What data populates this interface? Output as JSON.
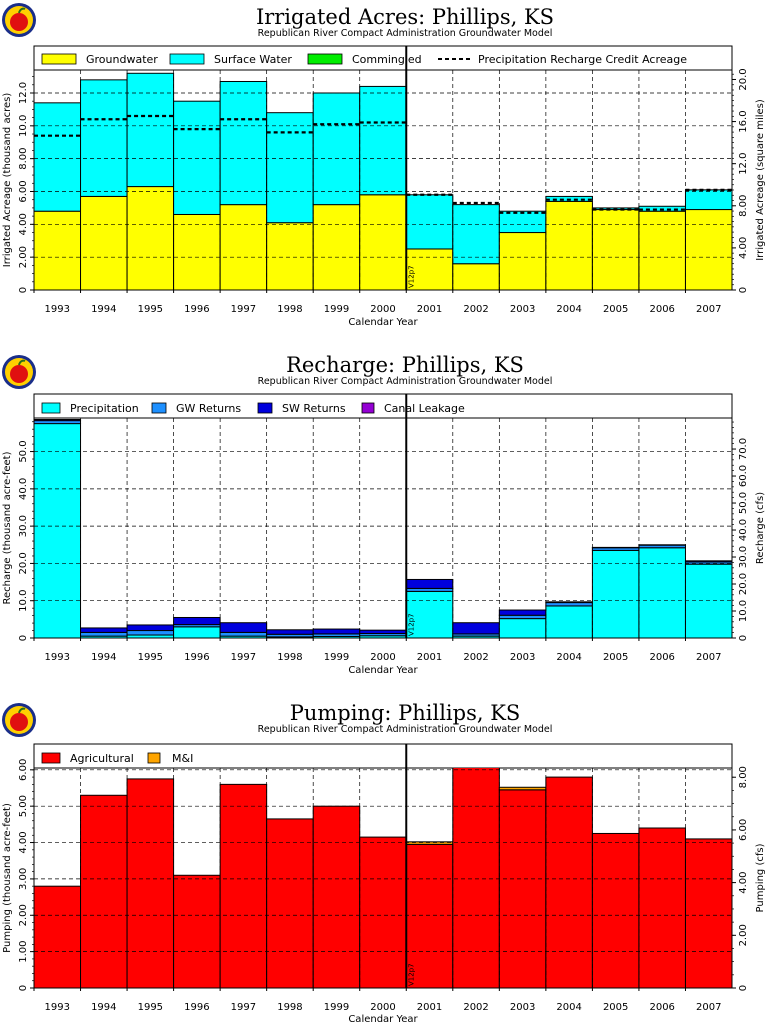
{
  "chart_data": [
    {
      "type": "bar",
      "stacked": true,
      "title": "Irrigated Acres: Phillips, KS",
      "subtitle": "Republican River Compact Administration Groundwater Model",
      "xlabel": "Calendar Year",
      "ylabel": "Irrigated Acreage (thousand acres)",
      "y2label": "Irrigated Acreage (square miles)",
      "categories": [
        "1993",
        "1994",
        "1995",
        "1996",
        "1997",
        "1998",
        "1999",
        "2000",
        "2001",
        "2002",
        "2003",
        "2004",
        "2005",
        "2006",
        "2007"
      ],
      "ylim": [
        0,
        13.4
      ],
      "yticks": [
        "0",
        "2.00",
        "4.00",
        "6.00",
        "8.00",
        "10.0",
        "12.0"
      ],
      "y2lim": [
        0,
        20.9
      ],
      "y2ticks": [
        "0",
        "4.00",
        "8.00",
        "12.0",
        "16.0",
        "20.0"
      ],
      "vline_label": "V12p7",
      "series": [
        {
          "name": "Groundwater",
          "color": "#ffff00",
          "values": [
            4.8,
            5.7,
            6.3,
            4.6,
            5.2,
            4.1,
            5.2,
            5.8,
            2.5,
            1.6,
            3.5,
            5.4,
            4.9,
            4.8,
            4.9
          ]
        },
        {
          "name": "Surface Water",
          "color": "#00ffff",
          "values": [
            6.6,
            7.1,
            6.9,
            6.9,
            7.5,
            6.7,
            6.8,
            6.6,
            3.3,
            3.6,
            1.3,
            0.3,
            0.1,
            0.3,
            1.2
          ]
        },
        {
          "name": "Commingled",
          "color": "#00ee00",
          "values": [
            0,
            0,
            0,
            0,
            0,
            0,
            0,
            0,
            0,
            0,
            0,
            0,
            0,
            0,
            0
          ]
        }
      ],
      "overlay": {
        "name": "Precipitation Recharge Credit Acreage",
        "style": "dashed",
        "values": [
          9.4,
          10.4,
          10.6,
          9.8,
          10.4,
          9.6,
          10.1,
          10.2,
          5.8,
          5.3,
          4.7,
          5.5,
          4.9,
          4.9,
          6.1
        ]
      }
    },
    {
      "type": "bar",
      "stacked": true,
      "title": "Recharge: Phillips, KS",
      "subtitle": "Republican River Compact Administration Groundwater Model",
      "xlabel": "Calendar Year",
      "ylabel": "Recharge (thousand acre-feet)",
      "y2label": "Recharge (cfs)",
      "categories": [
        "1993",
        "1994",
        "1995",
        "1996",
        "1997",
        "1998",
        "1999",
        "2000",
        "2001",
        "2002",
        "2003",
        "2004",
        "2005",
        "2006",
        "2007"
      ],
      "ylim": [
        0,
        59
      ],
      "yticks": [
        "0",
        "10.0",
        "20.0",
        "30.0",
        "40.0",
        "50.0"
      ],
      "y2lim": [
        0,
        81.5
      ],
      "y2ticks": [
        "0",
        "10.0",
        "20.0",
        "30.0",
        "40.0",
        "50.0",
        "60.0",
        "70.0"
      ],
      "vline_label": "V12p7",
      "series": [
        {
          "name": "Precipitation",
          "color": "#00ffff",
          "values": [
            57.5,
            0.5,
            0.8,
            3.0,
            0.5,
            0.3,
            0.4,
            0.6,
            12.5,
            0.5,
            5.2,
            8.6,
            23.5,
            24.2,
            19.8
          ]
        },
        {
          "name": "GW Returns",
          "color": "#1e90ff",
          "values": [
            0.8,
            1.0,
            1.2,
            0.6,
            1.0,
            0.7,
            0.7,
            0.6,
            0.8,
            0.6,
            0.9,
            0.9,
            0.7,
            0.7,
            0.6
          ]
        },
        {
          "name": "SW Returns",
          "color": "#0000dd",
          "values": [
            0.3,
            1.2,
            1.5,
            1.9,
            2.6,
            1.2,
            1.3,
            0.9,
            2.4,
            3.0,
            1.4,
            0.2,
            0.1,
            0.1,
            0.3
          ]
        },
        {
          "name": "Canal Leakage",
          "color": "#9400d3",
          "values": [
            0,
            0,
            0,
            0,
            0,
            0,
            0,
            0,
            0,
            0,
            0,
            0,
            0,
            0,
            0
          ]
        }
      ]
    },
    {
      "type": "bar",
      "stacked": true,
      "title": "Pumping: Phillips, KS",
      "subtitle": "Republican River Compact Administration Groundwater Model",
      "xlabel": "Calendar Year",
      "ylabel": "Pumping (thousand acre-feet)",
      "y2label": "Pumping (cfs)",
      "categories": [
        "1993",
        "1994",
        "1995",
        "1996",
        "1997",
        "1998",
        "1999",
        "2000",
        "2001",
        "2002",
        "2003",
        "2004",
        "2005",
        "2006",
        "2007"
      ],
      "ylim": [
        0,
        6.05
      ],
      "yticks": [
        "0",
        "1.00",
        "2.00",
        "3.00",
        "4.00",
        "5.00",
        "6.00"
      ],
      "y2lim": [
        0,
        8.35
      ],
      "y2ticks": [
        "0",
        "2.00",
        "4.00",
        "6.00",
        "8.00"
      ],
      "vline_label": "V12p7",
      "series": [
        {
          "name": "Agricultural",
          "color": "#ff0000",
          "values": [
            2.8,
            5.3,
            5.75,
            3.1,
            5.6,
            4.65,
            5.0,
            4.15,
            3.95,
            6.3,
            5.45,
            5.8,
            4.25,
            4.4,
            4.1
          ]
        },
        {
          "name": "M&I",
          "color": "#ffa500",
          "values": [
            0,
            0,
            0,
            0,
            0,
            0,
            0,
            0,
            0.07,
            0,
            0.07,
            0,
            0,
            0,
            0
          ]
        }
      ]
    }
  ]
}
